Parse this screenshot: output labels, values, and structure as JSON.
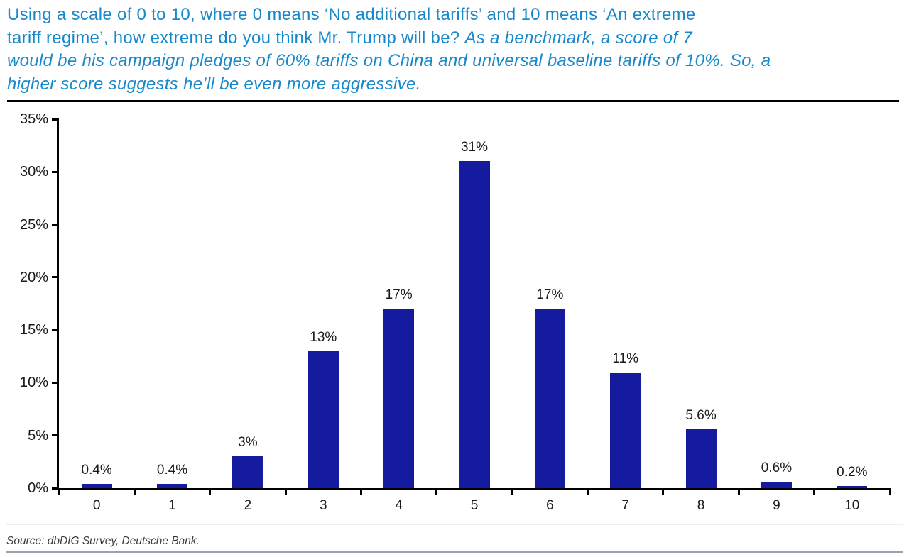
{
  "title": {
    "normal": "Using a scale of 0 to 10, where 0 means ‘No additional tariffs’ and 10 means ‘An extreme\ntariff regime’, how extreme do you think Mr. Trump will be? ",
    "italic": "As a benchmark, a score of 7\nwould be his campaign pledges of 60% tariffs on China and universal baseline tariffs of 10%. So, a\nhigher score suggests he’ll be even more aggressive."
  },
  "source": "Source: dbDIG Survey, Deutsche Bank.",
  "colors": {
    "title_blue": "#1789CB",
    "bar_blue": "#141B9F",
    "axis_black": "#000000",
    "label_black": "#1A1A1A",
    "source_gray": "#3A3A3A",
    "bottom_rule_gray_blue": "#9AA4AE",
    "divider_black": "#000000"
  },
  "chart_data": {
    "type": "bar",
    "title": "Using a scale of 0 to 10, where 0 means ‘No additional tariffs’ and 10 means ‘An extreme tariff regime’, how extreme do you think Mr. Trump will be? As a benchmark, a score of 7 would be his campaign pledges of 60% tariffs on China and universal baseline tariffs of 10%. So, a higher score suggests he’ll be even more aggressive.",
    "categories": [
      "0",
      "1",
      "2",
      "3",
      "4",
      "5",
      "6",
      "7",
      "8",
      "9",
      "10"
    ],
    "values": [
      0.4,
      0.4,
      3,
      13,
      17,
      31,
      17,
      11,
      5.6,
      0.6,
      0.2
    ],
    "value_labels": [
      "0.4%",
      "0.4%",
      "3%",
      "13%",
      "17%",
      "31%",
      "17%",
      "11%",
      "5.6%",
      "0.6%",
      "0.2%"
    ],
    "y_tick_labels": [
      "0%",
      "5%",
      "10%",
      "15%",
      "20%",
      "25%",
      "30%",
      "35%"
    ],
    "ylim": [
      0,
      35
    ],
    "y_tick_step": 5,
    "xlabel": "",
    "ylabel": "",
    "grid": false,
    "legend": null,
    "bar_color": "#141B9F"
  }
}
